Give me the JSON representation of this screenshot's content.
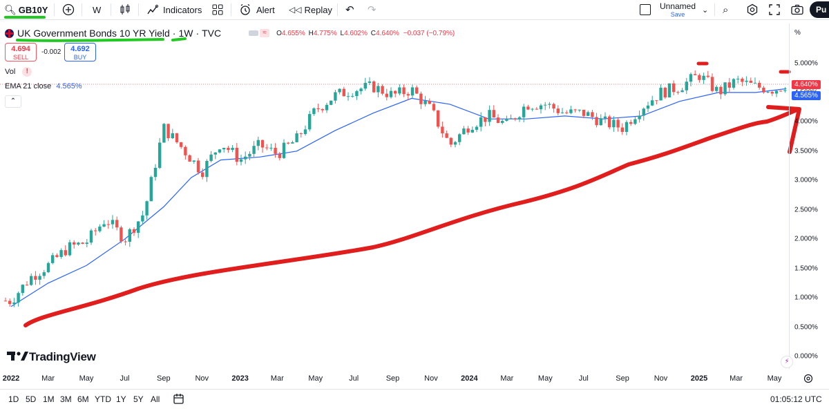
{
  "toolbar": {
    "symbol": "GB10Y",
    "interval": "W",
    "indicators_label": "Indicators",
    "alert_label": "Alert",
    "replay_label": "Replay",
    "layout_name": "Unnamed",
    "layout_status": "Save",
    "publish_label": "Pu"
  },
  "legend": {
    "title": "UK Government Bonds 10 YR Yield",
    "interval": "1W",
    "source": "TVC",
    "open_label": "O",
    "open": "4.655%",
    "high_label": "H",
    "high": "4.775%",
    "low_label": "L",
    "low": "4.602%",
    "close_label": "C",
    "close": "4.640%",
    "change": "−0.037 (−0.79%)",
    "sell_price": "4.694",
    "sell_label": "SELL",
    "spread": "-0.002",
    "buy_price": "4.692",
    "buy_label": "BUY",
    "vol_label": "Vol",
    "ema_label": "EMA 21 close",
    "ema_value": "4.565%",
    "collapse_icon": "chevron-up-icon"
  },
  "axis": {
    "scale_label": "%",
    "time_label": "01:05:12 UTC",
    "last_price_tag": "4.640%",
    "ema_tag": "4.565%"
  },
  "ranges": [
    "1D",
    "5D",
    "1M",
    "3M",
    "6M",
    "YTD",
    "1Y",
    "5Y",
    "All"
  ],
  "watermark": "TradingView",
  "colors": {
    "up": "#26a69a",
    "down": "#ef5350",
    "ema": "#2962ff",
    "annotation": "#e01e1e",
    "highlight": "#22c922"
  },
  "chart_data": {
    "type": "candlestick",
    "title": "UK Government Bonds 10 YR Yield · 1W · TVC",
    "ylabel": "%",
    "ylim": [
      0,
      5.2
    ],
    "y_ticks": [
      "5.000%",
      "4.500%",
      "4.000%",
      "3.500%",
      "3.000%",
      "2.500%",
      "2.000%",
      "1.500%",
      "1.000%",
      "0.500%",
      "0.000%"
    ],
    "y_tick_values": [
      5.0,
      4.5,
      4.0,
      3.5,
      3.0,
      2.5,
      2.0,
      1.5,
      1.0,
      0.5,
      0.0
    ],
    "x_ticks": [
      "2022",
      "Mar",
      "May",
      "Jul",
      "Sep",
      "Nov",
      "2023",
      "Mar",
      "May",
      "Jul",
      "Sep",
      "Nov",
      "2024",
      "Mar",
      "May",
      "Jul",
      "Sep",
      "Nov",
      "2025",
      "Mar",
      "May"
    ],
    "x_tick_dates": [
      "2022-01-01",
      "2022-03-01",
      "2022-05-01",
      "2022-07-01",
      "2022-09-01",
      "2022-11-01",
      "2023-01-01",
      "2023-03-01",
      "2023-05-01",
      "2023-07-01",
      "2023-09-01",
      "2023-11-01",
      "2024-01-01",
      "2024-03-01",
      "2024-05-01",
      "2024-07-01",
      "2024-09-01",
      "2024-11-01",
      "2025-01-01",
      "2025-03-01",
      "2025-05-01"
    ],
    "bold_x_ticks": [
      "2022",
      "2023",
      "2024",
      "2025"
    ],
    "series": [
      {
        "name": "GB10Y weekly close",
        "dates": [
          "2022-01-01",
          "2022-02-01",
          "2022-03-01",
          "2022-04-01",
          "2022-05-01",
          "2022-06-01",
          "2022-07-01",
          "2022-08-01",
          "2022-09-01",
          "2022-10-01",
          "2022-11-01",
          "2022-12-01",
          "2023-01-01",
          "2023-02-01",
          "2023-03-01",
          "2023-04-01",
          "2023-05-01",
          "2023-06-01",
          "2023-07-01",
          "2023-08-01",
          "2023-09-01",
          "2023-10-01",
          "2023-11-01",
          "2023-12-01",
          "2024-01-01",
          "2024-02-01",
          "2024-03-01",
          "2024-04-01",
          "2024-05-01",
          "2024-06-01",
          "2024-07-01",
          "2024-08-01",
          "2024-09-01",
          "2024-10-01",
          "2024-11-01",
          "2024-12-01",
          "2025-01-01",
          "2025-02-01",
          "2025-03-01",
          "2025-04-01",
          "2025-05-01",
          "2025-05-20"
        ],
        "values": [
          0.95,
          1.35,
          1.55,
          1.85,
          1.95,
          2.35,
          2.0,
          2.45,
          3.9,
          3.55,
          3.15,
          3.65,
          3.35,
          3.6,
          3.45,
          3.7,
          4.2,
          4.45,
          4.55,
          4.6,
          4.45,
          4.55,
          4.2,
          3.6,
          3.95,
          4.1,
          3.95,
          4.3,
          4.3,
          4.15,
          4.15,
          4.0,
          3.9,
          4.25,
          4.5,
          4.6,
          4.8,
          4.5,
          4.7,
          4.6,
          4.55,
          4.64
        ]
      },
      {
        "name": "EMA 21 close",
        "dates": [
          "2022-01-01",
          "2022-03-01",
          "2022-05-01",
          "2022-07-01",
          "2022-09-01",
          "2022-10-15",
          "2022-12-01",
          "2023-02-01",
          "2023-04-01",
          "2023-06-01",
          "2023-08-01",
          "2023-10-01",
          "2023-12-01",
          "2024-02-01",
          "2024-04-01",
          "2024-06-01",
          "2024-08-01",
          "2024-10-01",
          "2024-12-01",
          "2025-02-01",
          "2025-04-01",
          "2025-05-20"
        ],
        "values": [
          0.85,
          1.25,
          1.55,
          2.0,
          2.55,
          3.05,
          3.35,
          3.4,
          3.5,
          3.85,
          4.15,
          4.4,
          4.3,
          4.05,
          4.05,
          4.1,
          4.05,
          4.1,
          4.35,
          4.5,
          4.5,
          4.565
        ]
      }
    ],
    "annotations": [
      "green underline under symbol and title",
      "red hand-drawn upward arrow",
      "red tick marks at two highs"
    ]
  }
}
